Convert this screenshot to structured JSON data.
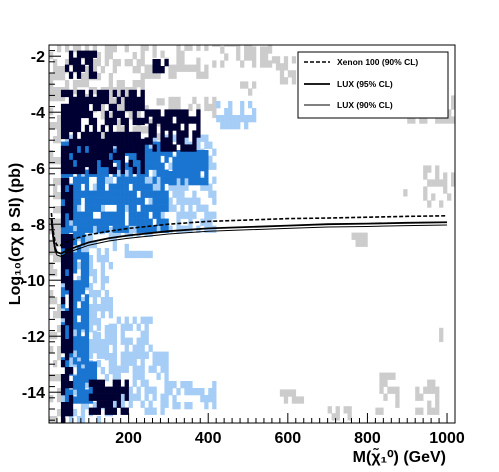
{
  "chart_data": {
    "type": "heatmap",
    "title": "",
    "xlabel": "M(χ̃₁⁰) (GeV)",
    "ylabel": "Log₁₀(σχ p SI) (pb)",
    "xlim": [
      0,
      1020
    ],
    "ylim": [
      -15.1,
      -1.6
    ],
    "x_ticks": [
      200,
      400,
      600,
      800,
      1000
    ],
    "x_tick_labels": [
      "200",
      "400",
      "600",
      "800",
      "1000"
    ],
    "y_ticks": [
      -14,
      -12,
      -10,
      -8,
      -6,
      -4,
      -2
    ],
    "y_tick_labels": [
      "-14",
      "-12",
      "-10",
      "-8",
      "-6",
      "-4",
      "-2"
    ],
    "grid": false,
    "legend_position": "top-right",
    "colors": {
      "gray": "#cccccc",
      "navy": "#000033",
      "mid_blue": "#1a75d1",
      "light_blue": "#a6cdf5",
      "curve": "#000000"
    },
    "legend": [
      {
        "label": "Xenon 100 (90% CL)",
        "style": "dashed",
        "width": 1.6
      },
      {
        "label": "LUX (95% CL)",
        "style": "solid",
        "width": 1.8
      },
      {
        "label": "LUX (90% CL)",
        "style": "solid",
        "width": 1.0
      }
    ],
    "series": [
      {
        "name": "Xenon 100 (90% CL)",
        "x": [
          6,
          10,
          15,
          20,
          30,
          50,
          80,
          100,
          150,
          200,
          300,
          400,
          500,
          600,
          700,
          800,
          900,
          1000
        ],
        "y": [
          -7.6,
          -8.2,
          -8.6,
          -8.75,
          -8.75,
          -8.6,
          -8.45,
          -8.38,
          -8.25,
          -8.15,
          -8.0,
          -7.9,
          -7.85,
          -7.8,
          -7.78,
          -7.75,
          -7.72,
          -7.7
        ]
      },
      {
        "name": "LUX (95% CL)",
        "x": [
          6,
          10,
          15,
          20,
          30,
          50,
          80,
          100,
          150,
          200,
          300,
          400,
          500,
          600,
          700,
          800,
          900,
          1000
        ],
        "y": [
          -7.8,
          -8.4,
          -8.85,
          -9.0,
          -9.05,
          -8.9,
          -8.75,
          -8.65,
          -8.5,
          -8.4,
          -8.25,
          -8.15,
          -8.1,
          -8.05,
          -8.0,
          -7.98,
          -7.95,
          -7.93
        ]
      },
      {
        "name": "LUX (90% CL)",
        "x": [
          6,
          10,
          15,
          20,
          30,
          50,
          80,
          100,
          150,
          200,
          300,
          400,
          500,
          600,
          700,
          800,
          900,
          1000
        ],
        "y": [
          -7.85,
          -8.5,
          -8.95,
          -9.1,
          -9.15,
          -9.0,
          -8.85,
          -8.75,
          -8.6,
          -8.5,
          -8.35,
          -8.25,
          -8.2,
          -8.15,
          -8.1,
          -8.08,
          -8.05,
          -8.03
        ]
      }
    ],
    "heatmap_bins": {
      "x_step": 10,
      "y_step": 0.25
    },
    "heatmap_layers": [
      {
        "name": "gray",
        "color_key": "gray",
        "rects": [
          [
            0,
            240,
            -3.6,
            -1.6
          ],
          [
            240,
            400,
            -2.8,
            -1.6
          ],
          [
            400,
            560,
            -2.4,
            -1.6
          ],
          [
            560,
            640,
            -3.0,
            -2.2
          ],
          [
            100,
            300,
            -5.0,
            -3.6
          ],
          [
            300,
            420,
            -4.2,
            -3.6
          ],
          [
            0,
            30,
            -15.1,
            -4.0
          ],
          [
            880,
            1020,
            -4.4,
            -3.6
          ],
          [
            920,
            1000,
            -3.2,
            -2.6
          ],
          [
            700,
            760,
            -3.2,
            -2.8
          ],
          [
            940,
            1020,
            -7.4,
            -6.0
          ],
          [
            0,
            30,
            -8.8,
            -8.0
          ],
          [
            820,
            880,
            -14.8,
            -13.4
          ],
          [
            920,
            980,
            -14.8,
            -13.6
          ],
          [
            580,
            640,
            -14.4,
            -14.0
          ],
          [
            700,
            760,
            -15.0,
            -14.6
          ],
          [
            980,
            1020,
            -12.2,
            -11.8
          ],
          [
            760,
            800,
            -8.8,
            -8.4
          ],
          [
            860,
            900,
            -7.0,
            -6.6
          ],
          [
            480,
            520,
            -3.4,
            -3.0
          ]
        ],
        "fill": 0.5,
        "seed": 11
      },
      {
        "name": "light_blue",
        "color_key": "light_blue",
        "rects": [
          [
            30,
            420,
            -8.3,
            -5.0
          ],
          [
            30,
            160,
            -15.1,
            -8.3
          ],
          [
            160,
            260,
            -9.2,
            -8.3
          ],
          [
            160,
            300,
            -14.8,
            -12.6
          ],
          [
            100,
            260,
            -12.8,
            -11.4
          ],
          [
            300,
            420,
            -14.6,
            -13.6
          ],
          [
            420,
            520,
            -4.6,
            -3.8
          ]
        ],
        "fill": 0.55,
        "seed": 23
      },
      {
        "name": "mid_blue",
        "color_key": "mid_blue",
        "rects": [
          [
            30,
            300,
            -8.3,
            -5.2
          ],
          [
            30,
            100,
            -13.0,
            -8.3
          ],
          [
            300,
            400,
            -6.6,
            -5.4
          ],
          [
            40,
            120,
            -14.4,
            -13.0
          ]
        ],
        "fill": 0.8,
        "seed": 37
      },
      {
        "name": "navy",
        "color_key": "navy",
        "rects": [
          [
            30,
            240,
            -6.2,
            -3.2
          ],
          [
            40,
            120,
            -2.8,
            -1.8
          ],
          [
            240,
            380,
            -5.4,
            -4.0
          ],
          [
            30,
            60,
            -15.1,
            -6.2
          ],
          [
            100,
            200,
            -14.8,
            -13.6
          ],
          [
            260,
            300,
            -2.6,
            -2.2
          ]
        ],
        "fill": 0.7,
        "seed": 53
      }
    ]
  },
  "plot_frame": {
    "outer_rect": "white",
    "axis_color": "#000000"
  }
}
